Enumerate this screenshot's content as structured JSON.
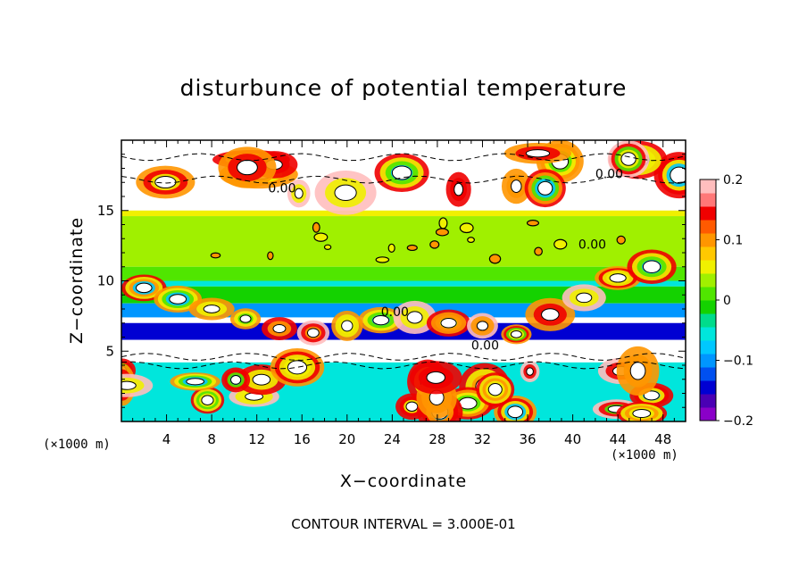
{
  "chart_data": {
    "type": "heatmap",
    "title": "disturbunce of potential temperature",
    "xlabel": "X−coordinate",
    "ylabel": "Z−coordinate",
    "x_unit": "(×1000 m)",
    "y_unit": "(×1000 m)",
    "xlim": [
      0,
      50
    ],
    "ylim": [
      0,
      20
    ],
    "x_ticks": [
      4,
      8,
      12,
      16,
      20,
      24,
      28,
      32,
      36,
      40,
      44,
      48
    ],
    "y_ticks": [
      5,
      10,
      15
    ],
    "colorbar": {
      "range": [
        -0.2,
        0.2
      ],
      "ticks": [
        "0.2",
        "0.1",
        "0",
        "−0.1",
        "−0.2"
      ],
      "colors": [
        "#8a00c8",
        "#4a00b4",
        "#0000d2",
        "#0050f0",
        "#0096ff",
        "#00c8ff",
        "#00e6dc",
        "#00dc8c",
        "#14d200",
        "#50e600",
        "#a0f000",
        "#f0f000",
        "#ffc800",
        "#ff9600",
        "#ff5a00",
        "#f00000",
        "#ff7878",
        "#ffbebe"
      ]
    },
    "contour_label": "0.00",
    "contour_interval_text": "CONTOUR INTERVAL = 3.000E-01",
    "bands": [
      {
        "z": [
          15.0,
          19.0
        ],
        "level": "white"
      },
      {
        "z": [
          14.6,
          15.0
        ],
        "level": 0.05
      },
      {
        "z": [
          11.0,
          14.6
        ],
        "level": 0.03
      },
      {
        "z": [
          10.0,
          11.0
        ],
        "level": 0.0
      },
      {
        "z": [
          9.6,
          10.0
        ],
        "level": -0.06
      },
      {
        "z": [
          8.4,
          9.6
        ],
        "level": -0.02
      },
      {
        "z": [
          7.4,
          8.4
        ],
        "level": -0.1
      },
      {
        "z": [
          7.0,
          7.4
        ],
        "level": "white"
      },
      {
        "z": [
          5.8,
          7.0
        ],
        "level": -0.15
      },
      {
        "z": [
          4.2,
          5.8
        ],
        "level": "white"
      },
      {
        "z": [
          0.0,
          4.2
        ],
        "level": -0.05
      }
    ]
  },
  "labels": {
    "unit_left": "(×1000 m)",
    "unit_right": "(×1000 m)"
  }
}
